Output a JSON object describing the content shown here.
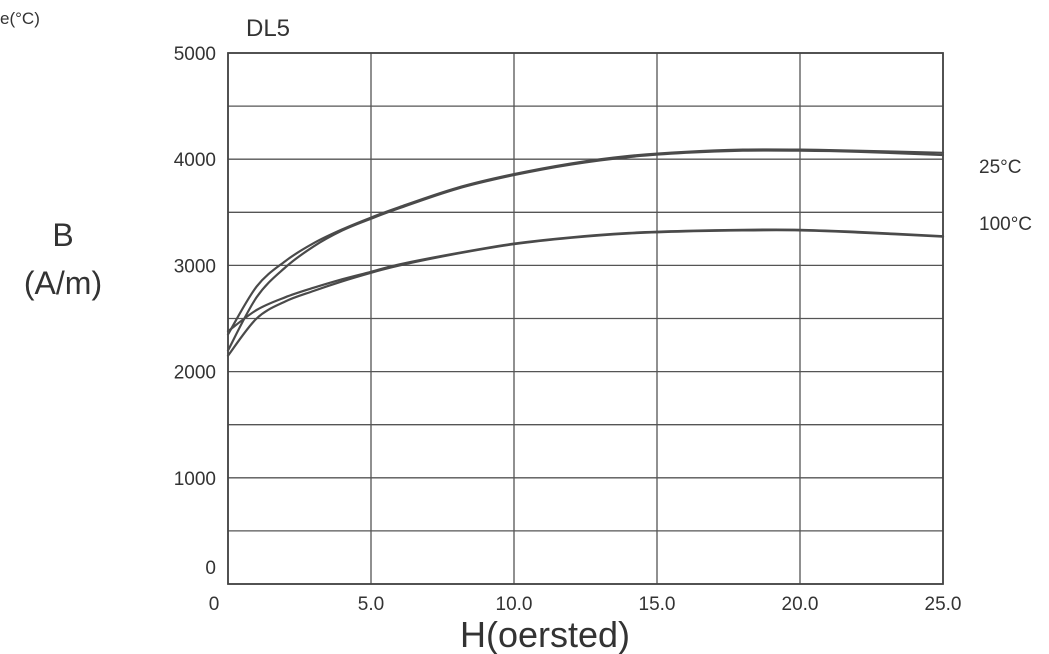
{
  "corner_label": "e(°C)",
  "chart_data": {
    "type": "line",
    "title": "DL5",
    "xlabel": "H(oersted)",
    "ylabel_line1": "B",
    "ylabel_line2": "(A/m)",
    "xlim": [
      0,
      25
    ],
    "ylim": [
      0,
      5000
    ],
    "grid": true,
    "x_ticks": [
      0,
      5,
      10,
      15,
      20,
      25
    ],
    "x_tick_labels": [
      "0",
      "5.0",
      "10.0",
      "15.0",
      "20.0",
      "25.0"
    ],
    "y_ticks": [
      0,
      1000,
      2000,
      3000,
      4000,
      5000
    ],
    "y_tick_labels": [
      "0",
      "1000",
      "2000",
      "3000",
      "4000",
      "5000"
    ],
    "series": [
      {
        "name": "25°C",
        "color": "#4a4a4a",
        "x": [
          0,
          1,
          2,
          3,
          4,
          5,
          6,
          8,
          10,
          12,
          14,
          16,
          18,
          20,
          22,
          25
        ],
        "y": [
          2200,
          2700,
          2980,
          3180,
          3330,
          3440,
          3540,
          3720,
          3850,
          3950,
          4020,
          4060,
          4080,
          4080,
          4070,
          4040
        ]
      },
      {
        "name": "25°C",
        "color": "#4a4a4a",
        "x": [
          0,
          1,
          2,
          3,
          4,
          5,
          6,
          8,
          10,
          12,
          14,
          16,
          18,
          20,
          22,
          25
        ],
        "y": [
          2350,
          2800,
          3040,
          3210,
          3340,
          3450,
          3550,
          3730,
          3860,
          3960,
          4030,
          4070,
          4090,
          4090,
          4080,
          4060
        ]
      },
      {
        "name": "100°C",
        "color": "#4a4a4a",
        "x": [
          0,
          1,
          2,
          3,
          4,
          5,
          6,
          8,
          10,
          12,
          14,
          16,
          18,
          20,
          22,
          25
        ],
        "y": [
          2150,
          2500,
          2660,
          2760,
          2850,
          2930,
          3000,
          3110,
          3200,
          3260,
          3300,
          3320,
          3330,
          3330,
          3310,
          3270
        ]
      },
      {
        "name": "100°C",
        "color": "#4a4a4a",
        "x": [
          0,
          1,
          2,
          3,
          4,
          5,
          6,
          8,
          10,
          12,
          14,
          16,
          18,
          20,
          22,
          25
        ],
        "y": [
          2380,
          2580,
          2700,
          2790,
          2870,
          2940,
          3010,
          3115,
          3205,
          3265,
          3305,
          3325,
          3335,
          3335,
          3315,
          3275
        ]
      }
    ],
    "series_labels": [
      "25°C",
      "100°C"
    ]
  }
}
